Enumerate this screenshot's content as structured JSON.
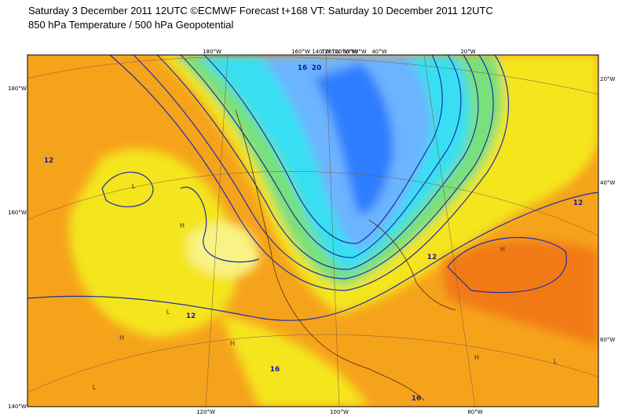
{
  "header": {
    "title": "Saturday 3 December 2011 12UTC ©ECMWF Forecast t+168 VT: Saturday 10 December 2011 12UTC",
    "subtitle": "850 hPa Temperature / 500 hPa Geopotential"
  },
  "map": {
    "left_labels": [
      "180°W",
      "160°W",
      "140°W"
    ],
    "top_labels": [
      "180°W",
      "160°W",
      "140°W",
      "120°W",
      "100°W",
      "80°W",
      "60°W",
      "40°W",
      "20°W"
    ],
    "right_labels": [
      "20°W",
      "40°W",
      "60°W"
    ],
    "bottom_labels": [
      "120°W",
      "100°W",
      "80°W"
    ],
    "contour_labels": [
      "12",
      "12",
      "12",
      "12",
      "16",
      "16",
      "20",
      "16"
    ],
    "pressure_centers": [
      "L",
      "H",
      "L",
      "H",
      "H",
      "L",
      "H",
      "H",
      "L"
    ]
  }
}
